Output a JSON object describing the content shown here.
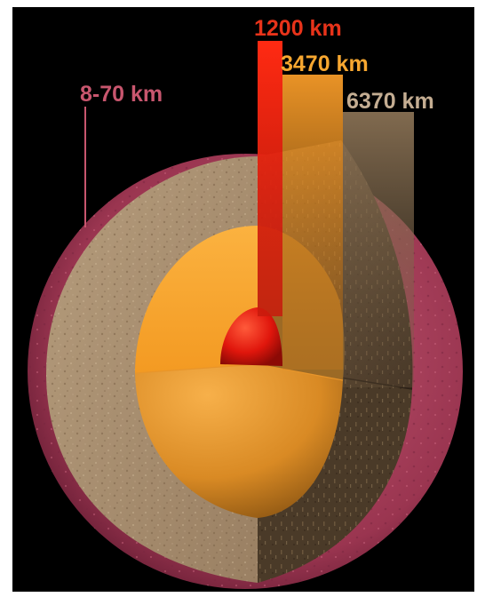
{
  "diagram": {
    "labels": {
      "inner_core": "1200 km",
      "outer_core": "3470 km",
      "mantle": "6370 km",
      "crust": "8-70 km"
    },
    "colors": {
      "background": "#000000",
      "inner_core": "#e8160c",
      "outer_core": "#f7a22c",
      "mantle": "#a88e6e",
      "crust": "#b2425c",
      "label_inner_core": "#e8331a",
      "label_outer_core": "#f7a730",
      "label_mantle": "#c4ad92",
      "label_crust": "#c8566e"
    }
  }
}
